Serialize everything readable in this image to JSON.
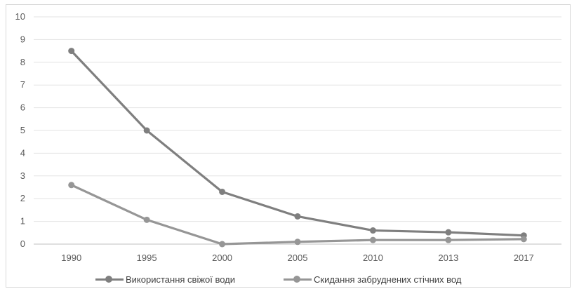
{
  "chart_data": {
    "type": "line",
    "categories": [
      "1990",
      "1995",
      "2000",
      "2005",
      "2010",
      "2013",
      "2017"
    ],
    "ylim": [
      0,
      10
    ],
    "yticks": [
      "0",
      "1",
      "2",
      "3",
      "4",
      "5",
      "6",
      "7",
      "8",
      "9",
      "10"
    ],
    "grid": true,
    "legend_position": "bottom",
    "series": [
      {
        "name": "Використання свіжої води",
        "values": [
          8.5,
          5.0,
          2.3,
          1.22,
          0.6,
          0.52,
          0.38
        ],
        "color": "#7f7f7f"
      },
      {
        "name": "Скидання забруднених стічних вод",
        "values": [
          2.6,
          1.07,
          0.0,
          0.1,
          0.18,
          0.18,
          0.22
        ],
        "color": "#969696"
      }
    ]
  }
}
